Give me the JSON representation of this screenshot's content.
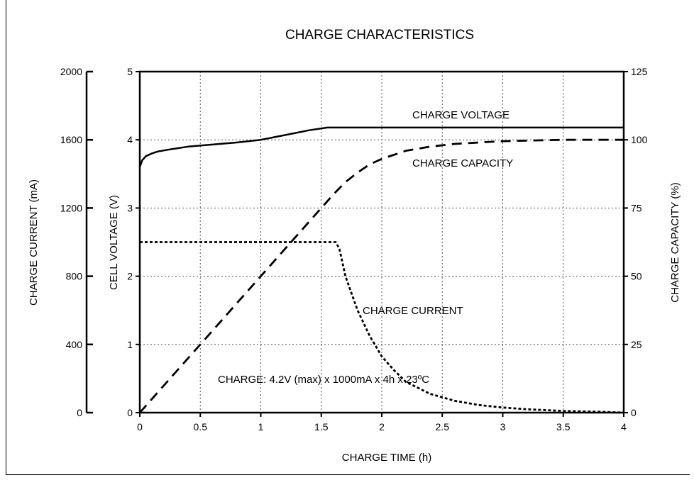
{
  "chart_data": {
    "type": "line",
    "title": "CHARGE CHARACTERISTICS",
    "xlabel": "CHARGE TIME (h)",
    "xlim": [
      0,
      4
    ],
    "x_ticks": [
      "0",
      "0.5",
      "1",
      "1.5",
      "2",
      "2.5",
      "3",
      "3.5",
      "4"
    ],
    "axes": {
      "charge_current": {
        "label": "CHARGE CURRENT (mA)",
        "lim": [
          0,
          2000
        ],
        "ticks": [
          "0",
          "400",
          "800",
          "1200",
          "1600",
          "2000"
        ]
      },
      "cell_voltage": {
        "label": "CELL VOLTAGE (V)",
        "lim": [
          0,
          5
        ],
        "ticks": [
          "0",
          "1",
          "2",
          "3",
          "4",
          "5"
        ]
      },
      "charge_capacity": {
        "label": "CHARGE CAPACITY (%)",
        "lim": [
          0,
          125
        ],
        "ticks": [
          "0",
          "25",
          "50",
          "75",
          "100",
          "125"
        ]
      }
    },
    "grid": true,
    "series": [
      {
        "name": "CHARGE VOLTAGE",
        "axis": "cell_voltage",
        "style": "solid",
        "x": [
          0,
          0.02,
          0.05,
          0.1,
          0.15,
          0.25,
          0.4,
          0.6,
          0.8,
          1.0,
          1.2,
          1.4,
          1.55,
          1.6,
          2.0,
          2.5,
          3.0,
          3.5,
          4.0
        ],
        "y": [
          3.6,
          3.7,
          3.76,
          3.8,
          3.83,
          3.86,
          3.9,
          3.93,
          3.96,
          4.0,
          4.07,
          4.14,
          4.18,
          4.18,
          4.18,
          4.18,
          4.18,
          4.18,
          4.18
        ]
      },
      {
        "name": "CHARGE CAPACITY",
        "axis": "charge_capacity",
        "style": "dashed",
        "x": [
          0,
          0.25,
          0.5,
          0.75,
          1.0,
          1.25,
          1.5,
          1.6,
          1.7,
          1.8,
          1.9,
          2.0,
          2.2,
          2.4,
          2.6,
          2.8,
          3.0,
          3.5,
          4.0
        ],
        "y": [
          0,
          12.5,
          25,
          37.5,
          50,
          62.5,
          75,
          80,
          84.5,
          88,
          91,
          93,
          96,
          97.5,
          98.5,
          99,
          99.5,
          100,
          100
        ]
      },
      {
        "name": "CHARGE CURRENT",
        "axis": "charge_current",
        "style": "dotted",
        "x": [
          0,
          1.62,
          1.65,
          1.7,
          1.8,
          1.9,
          2.0,
          2.1,
          2.2,
          2.4,
          2.6,
          2.8,
          3.0,
          3.2,
          3.5,
          3.8,
          4.0
        ],
        "y": [
          1000,
          1000,
          960,
          800,
          600,
          450,
          330,
          250,
          180,
          110,
          70,
          45,
          30,
          20,
          10,
          5,
          0
        ]
      }
    ],
    "annotations": [
      {
        "text": "CHARGE: 4.2V (max) x 1000mA x 4h x 23ºC",
        "x": 0.65,
        "axis": "cell_voltage",
        "y": 0.45
      }
    ]
  }
}
